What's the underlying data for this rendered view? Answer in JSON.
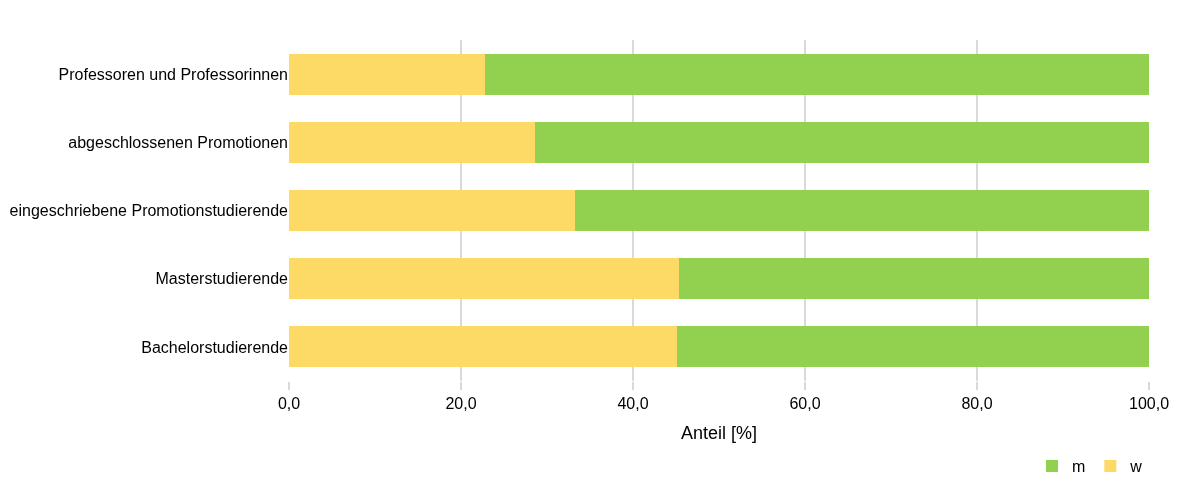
{
  "chart_data": {
    "type": "bar",
    "orientation": "horizontal",
    "stacked": true,
    "xlabel": "Anteil [%]",
    "categories": [
      "Professoren und Professorinnen",
      "abgeschlossenen Promotionen",
      "eingeschriebene Promotionstudierende",
      "Masterstudierende",
      "Bachelorstudierende"
    ],
    "series": [
      {
        "name": "w",
        "color": "#fdd966",
        "values": [
          22.8,
          28.6,
          33.3,
          45.3,
          45.1
        ]
      },
      {
        "name": "m",
        "color": "#92d050",
        "values": [
          77.2,
          71.4,
          66.7,
          54.7,
          54.9
        ]
      }
    ],
    "xlim": [
      0,
      100
    ],
    "xticks": [
      {
        "value": 0,
        "label": "0,0"
      },
      {
        "value": 20,
        "label": "20,0"
      },
      {
        "value": 40,
        "label": "40,0"
      },
      {
        "value": 60,
        "label": "60,0"
      },
      {
        "value": 80,
        "label": "80,0"
      },
      {
        "value": 100,
        "label": "100,0"
      }
    ],
    "grid": "x",
    "legend": "bottom right"
  }
}
